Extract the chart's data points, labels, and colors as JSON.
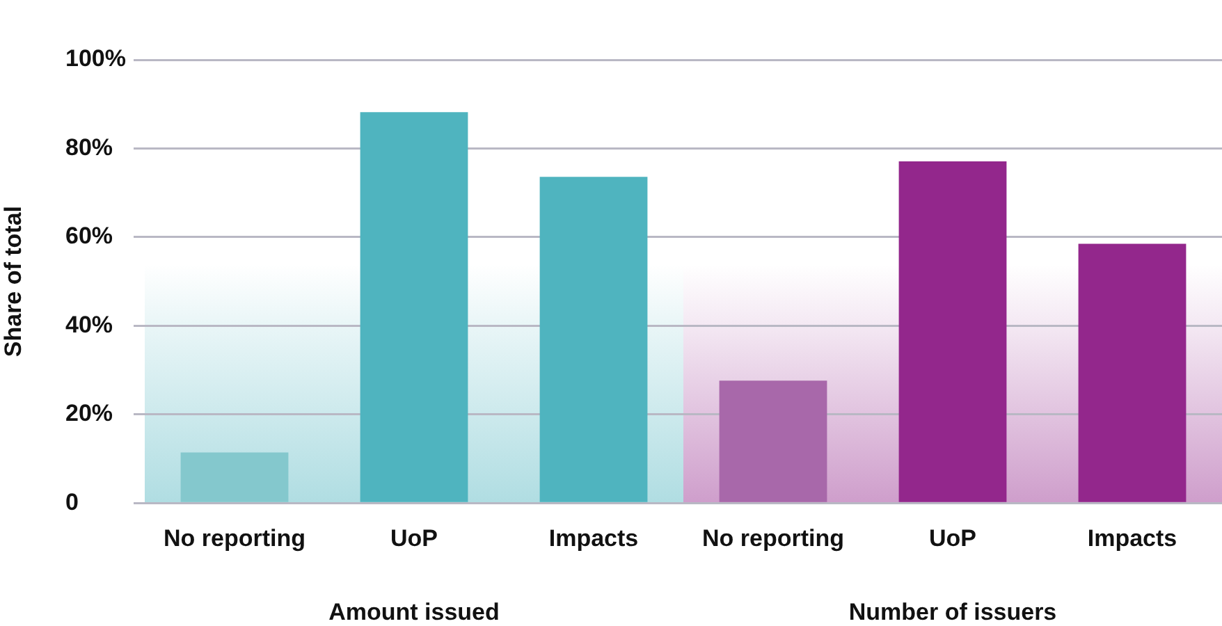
{
  "chart_data": {
    "type": "bar",
    "ylabel": "Share of total",
    "categories": [
      "No reporting",
      "UoP",
      "Impacts",
      "No reporting",
      "UoP",
      "Impacts"
    ],
    "values": [
      11.4,
      88.2,
      73.6,
      27.6,
      77.1,
      58.5
    ],
    "colors": [
      "#84c8cd",
      "#4fb4bf",
      "#4fb4bf",
      "#a868aa",
      "#93278c",
      "#93278c"
    ],
    "ylim": [
      0,
      100
    ],
    "yticks": [
      0,
      {
        "value": 20,
        "label": "20%"
      },
      {
        "value": 40,
        "label": "40%"
      },
      {
        "value": 60,
        "label": "60%"
      },
      {
        "value": 80,
        "label": "80%"
      },
      {
        "value": 100,
        "label": "100%"
      }
    ],
    "grid": "y",
    "legend": false,
    "annotations": [
      "Amount issued",
      "Number of issuers"
    ]
  }
}
